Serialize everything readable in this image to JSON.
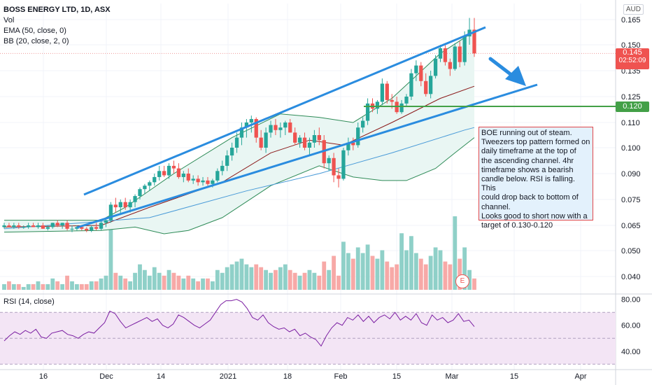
{
  "legend": {
    "title": "BOSS ENERGY LTD, 1D, ASX",
    "vol": "Vol",
    "ema": "EMA (50, close, 0)",
    "bb": "BB (20, close, 2, 0)",
    "rsi": "RSI (14, close)"
  },
  "currency": "AUD",
  "badges": {
    "last_price": "0.145",
    "countdown": "02:52:09",
    "level": "0.120"
  },
  "earnings_marker": "E",
  "note": {
    "lines": [
      "BOE running out of steam.",
      "Tweezers top pattern formed on",
      "daily timeframe at the top of",
      "the ascending channel. 4hr",
      "timeframe shows a bearish",
      "candle below. RSI is falling. This",
      "could drop back to bottom of",
      "channel.",
      "Looks good to short now with a",
      "target of 0.130-0.120"
    ]
  },
  "colors": {
    "up": "#26a69a",
    "down": "#ef5350",
    "up_vol": "#8fd0c8",
    "down_vol": "#f7a9a7",
    "trendline": "#2a8cdf",
    "level_line": "#43a047",
    "ema": "#4a9bd8",
    "bb_basis": "#8b1a1a",
    "bb_band": "#2e8b57",
    "bb_fill": "#e9f6f3",
    "rsi_line": "#7b1fa2",
    "rsi_fill": "#f3e5f5",
    "badge_red": "#ef5350",
    "badge_green": "#43a047"
  },
  "chart_data": [
    {
      "type": "candlestick",
      "title": "BOSS ENERGY LTD, 1D, ASX",
      "ylabel": "AUD",
      "ylim": [
        0.035,
        0.168
      ],
      "x_ticks": [
        "16",
        "Dec",
        "14",
        "2021",
        "18",
        "Feb",
        "15",
        "Mar",
        "15",
        "Apr"
      ],
      "y_ticks": [
        "0.165",
        "0.150",
        "0.135",
        "0.125",
        "0.110",
        "0.100",
        "0.090",
        "0.075",
        "0.065",
        "0.050",
        "0.040"
      ],
      "candles": [
        {
          "o": 0.064,
          "h": 0.066,
          "l": 0.063,
          "c": 0.065,
          "v": 2
        },
        {
          "o": 0.065,
          "h": 0.066,
          "l": 0.064,
          "c": 0.064,
          "v": 3
        },
        {
          "o": 0.064,
          "h": 0.066,
          "l": 0.063,
          "c": 0.065,
          "v": 2
        },
        {
          "o": 0.065,
          "h": 0.066,
          "l": 0.063,
          "c": 0.064,
          "v": 2
        },
        {
          "o": 0.064,
          "h": 0.065,
          "l": 0.063,
          "c": 0.064,
          "v": 1
        },
        {
          "o": 0.064,
          "h": 0.066,
          "l": 0.063,
          "c": 0.065,
          "v": 2
        },
        {
          "o": 0.065,
          "h": 0.066,
          "l": 0.064,
          "c": 0.064,
          "v": 2
        },
        {
          "o": 0.064,
          "h": 0.066,
          "l": 0.063,
          "c": 0.065,
          "v": 3
        },
        {
          "o": 0.065,
          "h": 0.066,
          "l": 0.063,
          "c": 0.063,
          "v": 2
        },
        {
          "o": 0.063,
          "h": 0.065,
          "l": 0.062,
          "c": 0.064,
          "v": 2
        },
        {
          "o": 0.064,
          "h": 0.066,
          "l": 0.063,
          "c": 0.066,
          "v": 4
        },
        {
          "o": 0.066,
          "h": 0.067,
          "l": 0.064,
          "c": 0.065,
          "v": 3
        },
        {
          "o": 0.065,
          "h": 0.066,
          "l": 0.063,
          "c": 0.066,
          "v": 2
        },
        {
          "o": 0.066,
          "h": 0.067,
          "l": 0.062,
          "c": 0.063,
          "v": 5
        },
        {
          "o": 0.063,
          "h": 0.065,
          "l": 0.061,
          "c": 0.063,
          "v": 3
        },
        {
          "o": 0.063,
          "h": 0.065,
          "l": 0.062,
          "c": 0.064,
          "v": 2
        },
        {
          "o": 0.064,
          "h": 0.065,
          "l": 0.062,
          "c": 0.063,
          "v": 2
        },
        {
          "o": 0.063,
          "h": 0.064,
          "l": 0.061,
          "c": 0.062,
          "v": 2
        },
        {
          "o": 0.062,
          "h": 0.065,
          "l": 0.061,
          "c": 0.064,
          "v": 3
        },
        {
          "o": 0.064,
          "h": 0.066,
          "l": 0.062,
          "c": 0.063,
          "v": 3
        },
        {
          "o": 0.063,
          "h": 0.067,
          "l": 0.062,
          "c": 0.066,
          "v": 4
        },
        {
          "o": 0.066,
          "h": 0.068,
          "l": 0.064,
          "c": 0.067,
          "v": 5
        },
        {
          "o": 0.067,
          "h": 0.074,
          "l": 0.066,
          "c": 0.073,
          "v": 24
        },
        {
          "o": 0.073,
          "h": 0.076,
          "l": 0.07,
          "c": 0.072,
          "v": 6
        },
        {
          "o": 0.072,
          "h": 0.075,
          "l": 0.069,
          "c": 0.074,
          "v": 5
        },
        {
          "o": 0.074,
          "h": 0.076,
          "l": 0.071,
          "c": 0.072,
          "v": 4
        },
        {
          "o": 0.072,
          "h": 0.075,
          "l": 0.07,
          "c": 0.074,
          "v": 3
        },
        {
          "o": 0.074,
          "h": 0.078,
          "l": 0.072,
          "c": 0.077,
          "v": 6
        },
        {
          "o": 0.077,
          "h": 0.082,
          "l": 0.075,
          "c": 0.081,
          "v": 9
        },
        {
          "o": 0.081,
          "h": 0.084,
          "l": 0.078,
          "c": 0.083,
          "v": 7
        },
        {
          "o": 0.083,
          "h": 0.086,
          "l": 0.08,
          "c": 0.085,
          "v": 5
        },
        {
          "o": 0.085,
          "h": 0.09,
          "l": 0.083,
          "c": 0.088,
          "v": 8
        },
        {
          "o": 0.088,
          "h": 0.093,
          "l": 0.086,
          "c": 0.091,
          "v": 6
        },
        {
          "o": 0.091,
          "h": 0.093,
          "l": 0.088,
          "c": 0.089,
          "v": 5
        },
        {
          "o": 0.089,
          "h": 0.094,
          "l": 0.087,
          "c": 0.093,
          "v": 7
        },
        {
          "o": 0.093,
          "h": 0.095,
          "l": 0.09,
          "c": 0.092,
          "v": 6
        },
        {
          "o": 0.092,
          "h": 0.094,
          "l": 0.087,
          "c": 0.088,
          "v": 5
        },
        {
          "o": 0.088,
          "h": 0.091,
          "l": 0.085,
          "c": 0.09,
          "v": 4
        },
        {
          "o": 0.09,
          "h": 0.092,
          "l": 0.085,
          "c": 0.086,
          "v": 5
        },
        {
          "o": 0.086,
          "h": 0.089,
          "l": 0.084,
          "c": 0.087,
          "v": 4
        },
        {
          "o": 0.087,
          "h": 0.089,
          "l": 0.083,
          "c": 0.085,
          "v": 3
        },
        {
          "o": 0.085,
          "h": 0.088,
          "l": 0.083,
          "c": 0.086,
          "v": 4
        },
        {
          "o": 0.086,
          "h": 0.088,
          "l": 0.083,
          "c": 0.084,
          "v": 4
        },
        {
          "o": 0.084,
          "h": 0.087,
          "l": 0.082,
          "c": 0.086,
          "v": 3
        },
        {
          "o": 0.086,
          "h": 0.092,
          "l": 0.085,
          "c": 0.091,
          "v": 7
        },
        {
          "o": 0.091,
          "h": 0.095,
          "l": 0.089,
          "c": 0.093,
          "v": 6
        },
        {
          "o": 0.093,
          "h": 0.099,
          "l": 0.091,
          "c": 0.097,
          "v": 8
        },
        {
          "o": 0.097,
          "h": 0.102,
          "l": 0.095,
          "c": 0.1,
          "v": 9
        },
        {
          "o": 0.1,
          "h": 0.106,
          "l": 0.098,
          "c": 0.104,
          "v": 10
        },
        {
          "o": 0.104,
          "h": 0.11,
          "l": 0.101,
          "c": 0.108,
          "v": 11
        },
        {
          "o": 0.108,
          "h": 0.112,
          "l": 0.104,
          "c": 0.11,
          "v": 9
        },
        {
          "o": 0.11,
          "h": 0.114,
          "l": 0.106,
          "c": 0.112,
          "v": 8
        },
        {
          "o": 0.112,
          "h": 0.113,
          "l": 0.102,
          "c": 0.104,
          "v": 9
        },
        {
          "o": 0.104,
          "h": 0.107,
          "l": 0.099,
          "c": 0.1,
          "v": 8
        },
        {
          "o": 0.1,
          "h": 0.108,
          "l": 0.098,
          "c": 0.106,
          "v": 7
        },
        {
          "o": 0.106,
          "h": 0.111,
          "l": 0.104,
          "c": 0.109,
          "v": 6
        },
        {
          "o": 0.109,
          "h": 0.112,
          "l": 0.105,
          "c": 0.107,
          "v": 7
        },
        {
          "o": 0.107,
          "h": 0.11,
          "l": 0.104,
          "c": 0.108,
          "v": 8
        },
        {
          "o": 0.108,
          "h": 0.111,
          "l": 0.105,
          "c": 0.11,
          "v": 9
        },
        {
          "o": 0.11,
          "h": 0.112,
          "l": 0.106,
          "c": 0.106,
          "v": 7
        },
        {
          "o": 0.106,
          "h": 0.108,
          "l": 0.101,
          "c": 0.102,
          "v": 6
        },
        {
          "o": 0.102,
          "h": 0.105,
          "l": 0.1,
          "c": 0.104,
          "v": 5
        },
        {
          "o": 0.104,
          "h": 0.106,
          "l": 0.099,
          "c": 0.1,
          "v": 6
        },
        {
          "o": 0.1,
          "h": 0.104,
          "l": 0.097,
          "c": 0.102,
          "v": 7
        },
        {
          "o": 0.102,
          "h": 0.107,
          "l": 0.1,
          "c": 0.105,
          "v": 6
        },
        {
          "o": 0.105,
          "h": 0.108,
          "l": 0.101,
          "c": 0.103,
          "v": 5
        },
        {
          "o": 0.103,
          "h": 0.105,
          "l": 0.092,
          "c": 0.094,
          "v": 10
        },
        {
          "o": 0.094,
          "h": 0.097,
          "l": 0.091,
          "c": 0.096,
          "v": 7
        },
        {
          "o": 0.096,
          "h": 0.098,
          "l": 0.085,
          "c": 0.089,
          "v": 12
        },
        {
          "o": 0.089,
          "h": 0.092,
          "l": 0.082,
          "c": 0.087,
          "v": 5
        },
        {
          "o": 0.087,
          "h": 0.1,
          "l": 0.086,
          "c": 0.099,
          "v": 17
        },
        {
          "o": 0.099,
          "h": 0.104,
          "l": 0.097,
          "c": 0.102,
          "v": 13
        },
        {
          "o": 0.102,
          "h": 0.104,
          "l": 0.099,
          "c": 0.101,
          "v": 11
        },
        {
          "o": 0.101,
          "h": 0.11,
          "l": 0.1,
          "c": 0.108,
          "v": 15
        },
        {
          "o": 0.108,
          "h": 0.113,
          "l": 0.106,
          "c": 0.111,
          "v": 13
        },
        {
          "o": 0.111,
          "h": 0.124,
          "l": 0.109,
          "c": 0.121,
          "v": 16
        },
        {
          "o": 0.121,
          "h": 0.124,
          "l": 0.116,
          "c": 0.118,
          "v": 12
        },
        {
          "o": 0.118,
          "h": 0.123,
          "l": 0.115,
          "c": 0.122,
          "v": 11
        },
        {
          "o": 0.122,
          "h": 0.132,
          "l": 0.12,
          "c": 0.13,
          "v": 14
        },
        {
          "o": 0.13,
          "h": 0.131,
          "l": 0.121,
          "c": 0.123,
          "v": 10
        },
        {
          "o": 0.123,
          "h": 0.126,
          "l": 0.118,
          "c": 0.122,
          "v": 8
        },
        {
          "o": 0.122,
          "h": 0.125,
          "l": 0.115,
          "c": 0.116,
          "v": 9
        },
        {
          "o": 0.116,
          "h": 0.123,
          "l": 0.115,
          "c": 0.121,
          "v": 20
        },
        {
          "o": 0.121,
          "h": 0.126,
          "l": 0.119,
          "c": 0.125,
          "v": 14
        },
        {
          "o": 0.125,
          "h": 0.136,
          "l": 0.123,
          "c": 0.134,
          "v": 19
        },
        {
          "o": 0.134,
          "h": 0.141,
          "l": 0.131,
          "c": 0.138,
          "v": 13
        },
        {
          "o": 0.138,
          "h": 0.14,
          "l": 0.129,
          "c": 0.131,
          "v": 11
        },
        {
          "o": 0.131,
          "h": 0.134,
          "l": 0.125,
          "c": 0.126,
          "v": 9
        },
        {
          "o": 0.126,
          "h": 0.135,
          "l": 0.124,
          "c": 0.133,
          "v": 12
        },
        {
          "o": 0.133,
          "h": 0.144,
          "l": 0.132,
          "c": 0.142,
          "v": 15
        },
        {
          "o": 0.142,
          "h": 0.15,
          "l": 0.14,
          "c": 0.148,
          "v": 14
        },
        {
          "o": 0.148,
          "h": 0.151,
          "l": 0.138,
          "c": 0.14,
          "v": 10
        },
        {
          "o": 0.14,
          "h": 0.142,
          "l": 0.133,
          "c": 0.136,
          "v": 9
        },
        {
          "o": 0.136,
          "h": 0.151,
          "l": 0.135,
          "c": 0.149,
          "v": 26
        },
        {
          "o": 0.149,
          "h": 0.152,
          "l": 0.137,
          "c": 0.14,
          "v": 11
        },
        {
          "o": 0.14,
          "h": 0.158,
          "l": 0.138,
          "c": 0.155,
          "v": 15
        },
        {
          "o": 0.155,
          "h": 0.166,
          "l": 0.15,
          "c": 0.159,
          "v": 7
        },
        {
          "o": 0.159,
          "h": 0.166,
          "l": 0.143,
          "c": 0.145,
          "v": 4
        }
      ],
      "overlays": {
        "ema_50": [
          [
            0,
            0.063
          ],
          [
            30,
            0.068
          ],
          [
            50,
            0.08
          ],
          [
            65,
            0.09
          ],
          [
            80,
            0.098
          ],
          [
            95,
            0.107
          ],
          [
            97,
            0.108
          ]
        ],
        "bb_basis": [
          [
            0,
            0.064
          ],
          [
            20,
            0.065
          ],
          [
            30,
            0.072
          ],
          [
            45,
            0.085
          ],
          [
            55,
            0.098
          ],
          [
            63,
            0.103
          ],
          [
            70,
            0.101
          ],
          [
            80,
            0.11
          ],
          [
            90,
            0.124
          ],
          [
            97,
            0.129
          ]
        ],
        "bb_upper": [
          [
            0,
            0.067
          ],
          [
            20,
            0.067
          ],
          [
            25,
            0.072
          ],
          [
            35,
            0.09
          ],
          [
            47,
            0.104
          ],
          [
            57,
            0.115
          ],
          [
            65,
            0.113
          ],
          [
            72,
            0.11
          ],
          [
            80,
            0.124
          ],
          [
            90,
            0.145
          ],
          [
            97,
            0.158
          ]
        ],
        "bb_lower": [
          [
            0,
            0.061
          ],
          [
            20,
            0.062
          ],
          [
            27,
            0.064
          ],
          [
            33,
            0.06
          ],
          [
            38,
            0.062
          ],
          [
            45,
            0.068
          ],
          [
            55,
            0.083
          ],
          [
            65,
            0.093
          ],
          [
            72,
            0.088
          ],
          [
            78,
            0.086
          ],
          [
            83,
            0.086
          ],
          [
            89,
            0.092
          ],
          [
            93,
            0.098
          ],
          [
            97,
            0.104
          ]
        ],
        "level_line": {
          "value": 0.12,
          "from_index": 73
        }
      }
    },
    {
      "type": "line",
      "title": "RSI (14, close)",
      "ylim": [
        28,
        82
      ],
      "y_ticks": [
        "80.00",
        "60.00",
        "40.00"
      ],
      "bands": [
        70,
        50,
        30
      ],
      "values": [
        48,
        52,
        55,
        53,
        56,
        54,
        57,
        51,
        50,
        54,
        55,
        56,
        53,
        52,
        50,
        53,
        55,
        54,
        58,
        62,
        71,
        69,
        63,
        58,
        60,
        62,
        64,
        66,
        63,
        65,
        60,
        58,
        61,
        68,
        66,
        63,
        60,
        58,
        61,
        64,
        70,
        76,
        79,
        79,
        80,
        78,
        73,
        66,
        64,
        68,
        62,
        59,
        57,
        58,
        55,
        57,
        52,
        54,
        51,
        49,
        44,
        52,
        58,
        62,
        60,
        66,
        64,
        68,
        63,
        67,
        62,
        66,
        68,
        65,
        70,
        64,
        67,
        64,
        69,
        62,
        60,
        68,
        64,
        66,
        62,
        64,
        69,
        63,
        64,
        59
      ]
    }
  ]
}
